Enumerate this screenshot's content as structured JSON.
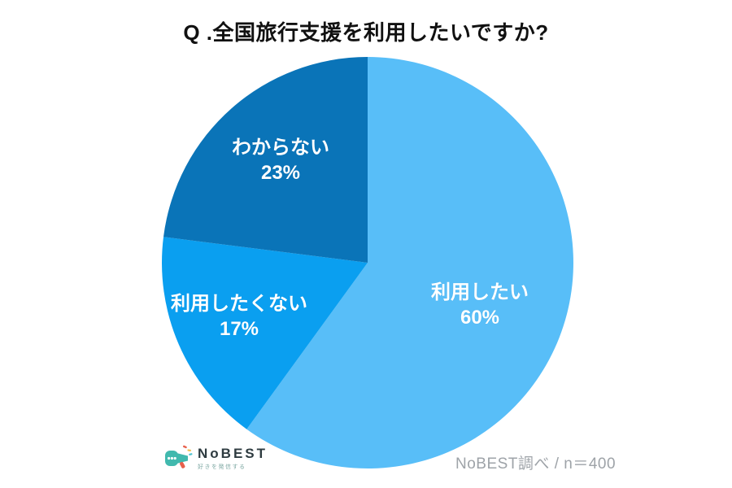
{
  "title": "Q .全国旅行支援を利用したいですか?",
  "chart_data": {
    "type": "pie",
    "title": "Q .全国旅行支援を利用したいですか?",
    "start_angle_deg": 0,
    "direction": "clockwise",
    "label_color": "#ffffff",
    "slices": [
      {
        "label": "利用したい",
        "value": 60,
        "percent_label": "60%",
        "color": "#58BEF8"
      },
      {
        "label": "利用したくない",
        "value": 17,
        "percent_label": "17%",
        "color": "#0A9FF0"
      },
      {
        "label": "わからない",
        "value": 23,
        "percent_label": "23%",
        "color": "#0A74B8"
      }
    ]
  },
  "footer": {
    "logo_text": "NoBEST",
    "logo_tagline": "好きを発信する",
    "source": "NoBEST調べ / n＝400"
  }
}
